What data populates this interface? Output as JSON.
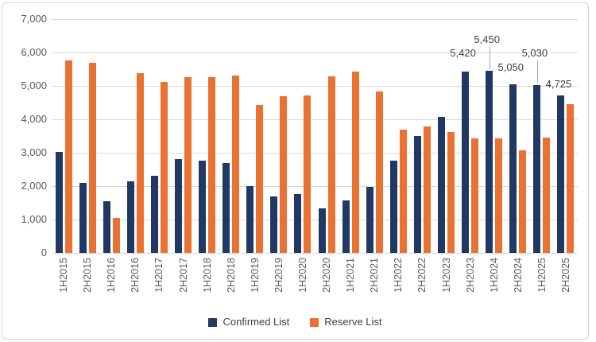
{
  "chart_data": {
    "type": "bar",
    "title": "",
    "xlabel": "",
    "ylabel": "",
    "ylim": [
      0,
      7000
    ],
    "ytick_step": 1000,
    "ytick_labels": [
      "0",
      "1,000",
      "2,000",
      "3,000",
      "4,000",
      "5,000",
      "6,000",
      "7,000"
    ],
    "grid": true,
    "legend_position": "bottom",
    "categories": [
      "1H2015",
      "2H2015",
      "1H2016",
      "2H2016",
      "1H2017",
      "2H2017",
      "1H2018",
      "2H2018",
      "1H2019",
      "2H2019",
      "1H2020",
      "2H2020",
      "1H2021",
      "2H2021",
      "1H2022",
      "2H2022",
      "1H2023",
      "2H2023",
      "1H2024",
      "2H2024",
      "1H2025",
      "2H2025"
    ],
    "series": [
      {
        "name": "Confirmed List",
        "color": "#1F3864",
        "values": [
          3030,
          2100,
          1550,
          2150,
          2300,
          2820,
          2760,
          2700,
          2000,
          1690,
          1760,
          1340,
          1570,
          1980,
          2770,
          3490,
          4080,
          5420,
          5450,
          5050,
          5030,
          4725
        ]
      },
      {
        "name": "Reserve List",
        "color": "#E97132",
        "values": [
          5760,
          5690,
          1040,
          5370,
          5130,
          5260,
          5260,
          5320,
          4430,
          4700,
          4710,
          5280,
          5440,
          4840,
          3690,
          3790,
          3610,
          3420,
          3440,
          3060,
          3460,
          4460
        ]
      }
    ],
    "data_labels": [
      {
        "category": "2H2023",
        "series": "Confirmed List",
        "text": "5,420",
        "gap": 16,
        "leader": false
      },
      {
        "category": "1H2024",
        "series": "Confirmed List",
        "text": "5,450",
        "gap": 32,
        "leader": true
      },
      {
        "category": "2H2024",
        "series": "Confirmed List",
        "text": "5,050",
        "gap": 14,
        "leader": false
      },
      {
        "category": "1H2025",
        "series": "Confirmed List",
        "text": "5,030",
        "gap": 33,
        "leader": true
      },
      {
        "category": "2H2025",
        "series": "Confirmed List",
        "text": "4,725",
        "gap": 7,
        "leader": false
      }
    ]
  },
  "legend": {
    "items": [
      {
        "label": "Confirmed List",
        "color": "#1F3864"
      },
      {
        "label": "Reserve List",
        "color": "#E97132"
      }
    ]
  },
  "colors": {
    "background": "#FFFFFF",
    "border": "#D2D2D2",
    "gridline": "#D9D9D9",
    "axis_text": "#595959",
    "data_label_text": "#404040",
    "leader_line": "#A6A6A6",
    "confirmed": "#1F3864",
    "reserve": "#E97132"
  }
}
